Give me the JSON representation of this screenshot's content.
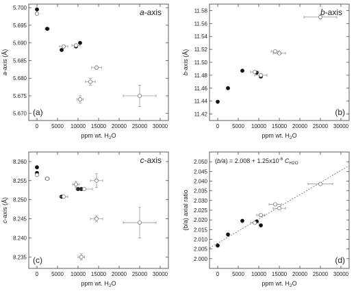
{
  "chart_data": [
    {
      "id": "a",
      "type": "scatter",
      "title": "a-axis",
      "title_italic": "a",
      "title_rest": "-axis",
      "panel_label": "(a)",
      "ylabel_italic": "a",
      "ylabel_rest": "-axis (Å)",
      "xlabel_main": "ppm wt. H",
      "xlabel_sub": "2",
      "xlabel_end": "O",
      "xlim": [
        -2000,
        32000
      ],
      "ylim": [
        5.668,
        5.701
      ],
      "xticks": [
        0,
        5000,
        10000,
        15000,
        20000,
        25000,
        30000
      ],
      "yticks": [
        5.67,
        5.675,
        5.68,
        5.685,
        5.69,
        5.695,
        5.7
      ],
      "ytick_labels": [
        "5.670",
        "5.675",
        "5.680",
        "5.685",
        "5.690",
        "5.695",
        "5.700"
      ],
      "series": [
        {
          "style": "filled",
          "points": [
            {
              "x": 0,
              "y": 5.6995
            },
            {
              "x": 2500,
              "y": 5.694,
              "xerr": 500
            },
            {
              "x": 6000,
              "y": 5.688
            },
            {
              "x": 9500,
              "y": 5.689
            },
            {
              "x": 10500,
              "y": 5.69
            }
          ]
        },
        {
          "style": "open",
          "points": [
            {
              "x": 0,
              "y": 5.6983
            },
            {
              "x": 6500,
              "y": 5.689,
              "xerr": 1000
            },
            {
              "x": 9500,
              "y": 5.6893,
              "xerr": 1000
            },
            {
              "x": 10500,
              "y": 5.674,
              "xerr": 800,
              "yerr": 0.001
            },
            {
              "x": 13000,
              "y": 5.679,
              "xerr": 1200,
              "yerr": 0.001
            },
            {
              "x": 14500,
              "y": 5.683,
              "xerr": 1200,
              "yerr": 0.0005
            },
            {
              "x": 25000,
              "y": 5.675,
              "xerr": 4000,
              "yerr": 0.003
            }
          ]
        }
      ]
    },
    {
      "id": "b",
      "type": "scatter",
      "title": "b-axis",
      "title_italic": "b",
      "title_rest": "-axis",
      "panel_label": "(b)",
      "ylabel_italic": "b",
      "ylabel_rest": "-axis (Å)",
      "xlabel_main": "ppm wt. H",
      "xlabel_sub": "2",
      "xlabel_end": "O",
      "xlim": [
        -2000,
        32000
      ],
      "ylim": [
        11.41,
        11.59
      ],
      "xticks": [
        0,
        5000,
        10000,
        15000,
        20000,
        25000,
        30000
      ],
      "yticks": [
        11.42,
        11.44,
        11.46,
        11.48,
        11.5,
        11.52,
        11.54,
        11.56,
        11.58
      ],
      "ytick_labels": [
        "11.42",
        "11.44",
        "11.46",
        "11.48",
        "11.50",
        "11.52",
        "11.54",
        "11.56",
        "11.58"
      ],
      "series": [
        {
          "style": "filled",
          "points": [
            {
              "x": 0,
              "y": 11.439
            },
            {
              "x": 2500,
              "y": 11.46
            },
            {
              "x": 6000,
              "y": 11.487
            },
            {
              "x": 9500,
              "y": 11.484
            },
            {
              "x": 10500,
              "y": 11.478
            }
          ]
        },
        {
          "style": "open",
          "points": [
            {
              "x": 9000,
              "y": 11.485,
              "xerr": 1000
            },
            {
              "x": 10500,
              "y": 11.48,
              "xerr": 1500
            },
            {
              "x": 14000,
              "y": 11.517,
              "xerr": 1000
            },
            {
              "x": 15000,
              "y": 11.514,
              "xerr": 1500
            },
            {
              "x": 25000,
              "y": 11.57,
              "xerr": 4000,
              "yerr": 0.003
            }
          ]
        }
      ]
    },
    {
      "id": "c",
      "type": "scatter",
      "title": "c-axis",
      "title_italic": "c",
      "title_rest": "-axis",
      "panel_label": "(c)",
      "ylabel_italic": "c",
      "ylabel_rest": "-axis (Å)",
      "xlabel_main": "ppm wt. H",
      "xlabel_sub": "2",
      "xlabel_end": "O",
      "xlim": [
        -2000,
        32000
      ],
      "ylim": [
        8.232,
        8.2625
      ],
      "xticks": [
        0,
        5000,
        10000,
        15000,
        20000,
        25000,
        30000
      ],
      "yticks": [
        8.235,
        8.24,
        8.245,
        8.25,
        8.255,
        8.26
      ],
      "ytick_labels": [
        "8.235",
        "8.240",
        "8.245",
        "8.250",
        "8.255",
        "8.260"
      ],
      "series": [
        {
          "style": "filled",
          "points": [
            {
              "x": 0,
              "y": 8.2585
            },
            {
              "x": 0,
              "y": 8.257
            },
            {
              "x": 2500,
              "y": 8.2555
            },
            {
              "x": 6000,
              "y": 8.2508
            },
            {
              "x": 10000,
              "y": 8.2528
            },
            {
              "x": 10800,
              "y": 8.2528
            }
          ]
        },
        {
          "style": "open",
          "points": [
            {
              "x": 0,
              "y": 8.2565
            },
            {
              "x": 2500,
              "y": 8.2555,
              "xerr": 500
            },
            {
              "x": 6500,
              "y": 8.2508,
              "xerr": 1000
            },
            {
              "x": 9500,
              "y": 8.254,
              "xerr": 800,
              "yerr": 0.0008
            },
            {
              "x": 11500,
              "y": 8.2528,
              "xerr": 2000
            },
            {
              "x": 10800,
              "y": 8.235,
              "xerr": 800,
              "yerr": 0.0008
            },
            {
              "x": 14500,
              "y": 8.255,
              "xerr": 1500,
              "yerr": 0.0018
            },
            {
              "x": 14500,
              "y": 8.245,
              "xerr": 1500,
              "yerr": 0.0008
            },
            {
              "x": 25000,
              "y": 8.244,
              "xerr": 4000,
              "yerr": 0.004
            }
          ]
        }
      ]
    },
    {
      "id": "d",
      "type": "scatter",
      "title": "",
      "panel_label": "(d)",
      "ylabel_italic": "",
      "ylabel_rest": "(b/a) axial ratio",
      "xlabel_main": "ppm wt. H",
      "xlabel_sub": "2",
      "xlabel_end": "O",
      "equation_lead": "(",
      "equation_ital1": "b/a",
      "equation_mid": ") = 2.008 + 1.25x10",
      "equation_sup": "-6",
      "equation_ital2": " C",
      "equation_sub": "H2O",
      "fit": {
        "intercept": 2.008,
        "slope": 1.25e-06
      },
      "xlim": [
        -2000,
        32000
      ],
      "ylim": [
        1.995,
        2.055
      ],
      "xticks": [
        0,
        5000,
        10000,
        15000,
        20000,
        25000,
        30000
      ],
      "yticks": [
        2.0,
        2.005,
        2.01,
        2.015,
        2.02,
        2.025,
        2.03,
        2.035,
        2.04,
        2.045,
        2.05
      ],
      "ytick_labels": [
        "2.000",
        "2.005",
        "2.010",
        "2.015",
        "2.020",
        "2.025",
        "2.030",
        "2.035",
        "2.040",
        "2.045",
        "2.050"
      ],
      "series": [
        {
          "style": "filled",
          "points": [
            {
              "x": 0,
              "y": 2.0068
            },
            {
              "x": 2500,
              "y": 2.0125
            },
            {
              "x": 6000,
              "y": 2.0195
            },
            {
              "x": 9500,
              "y": 2.0192
            },
            {
              "x": 10500,
              "y": 2.0172
            }
          ]
        },
        {
          "style": "open",
          "points": [
            {
              "x": 9000,
              "y": 2.0185,
              "xerr": 1000
            },
            {
              "x": 10500,
              "y": 2.0225,
              "xerr": 1000
            },
            {
              "x": 14000,
              "y": 2.028,
              "xerr": 1500
            },
            {
              "x": 15000,
              "y": 2.026,
              "xerr": 1500
            },
            {
              "x": 25000,
              "y": 2.0385,
              "xerr": 3000
            }
          ]
        }
      ]
    }
  ]
}
